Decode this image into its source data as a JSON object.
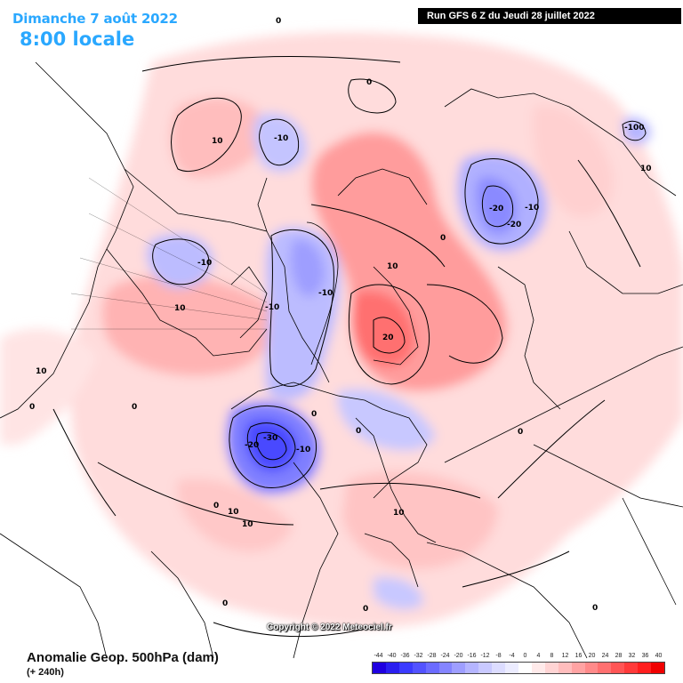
{
  "header": {
    "date": "Dimanche 7 août 2022",
    "time": "8:00 locale",
    "run": "Run GFS 6 Z du Jeudi 28 juillet 2022"
  },
  "footer": {
    "title": "Anomalie Geop. 500hPa (dam)",
    "subtitle": "(+ 240h)",
    "copyright": "Copyright © 2022 Meteociel.fr"
  },
  "legend": {
    "labels": [
      "-44",
      "-40",
      "-36",
      "-32",
      "-28",
      "-24",
      "-20",
      "-16",
      "-12",
      "-8",
      "-4",
      "0",
      "4",
      "8",
      "12",
      "16",
      "20",
      "24",
      "28",
      "32",
      "36",
      "40"
    ],
    "colors": [
      "#1f00e0",
      "#2a1ff0",
      "#3b3bff",
      "#5252ff",
      "#6b6bff",
      "#8585ff",
      "#9e9eff",
      "#b5b5ff",
      "#c9c9ff",
      "#dcdcff",
      "#ececff",
      "#ffffff",
      "#ffeaea",
      "#ffd4d4",
      "#ffbdbd",
      "#ffa3a3",
      "#ff8a8a",
      "#ff7070",
      "#ff5555",
      "#ff3a3a",
      "#ff1e1e",
      "#f00000"
    ]
  },
  "contour_labels": [
    "0",
    "0",
    "0",
    "0",
    "0",
    "0",
    "0",
    "0",
    "0",
    "0",
    "0",
    "0",
    "10",
    "10",
    "10",
    "10",
    "10",
    "10",
    "10",
    "10",
    "-10",
    "-10",
    "-10",
    "-10",
    "-10",
    "-10",
    "-20",
    "-20",
    "-20",
    "-30",
    "20",
    "-100"
  ],
  "icons": {
    "map": "geopotential-anomaly-map"
  }
}
